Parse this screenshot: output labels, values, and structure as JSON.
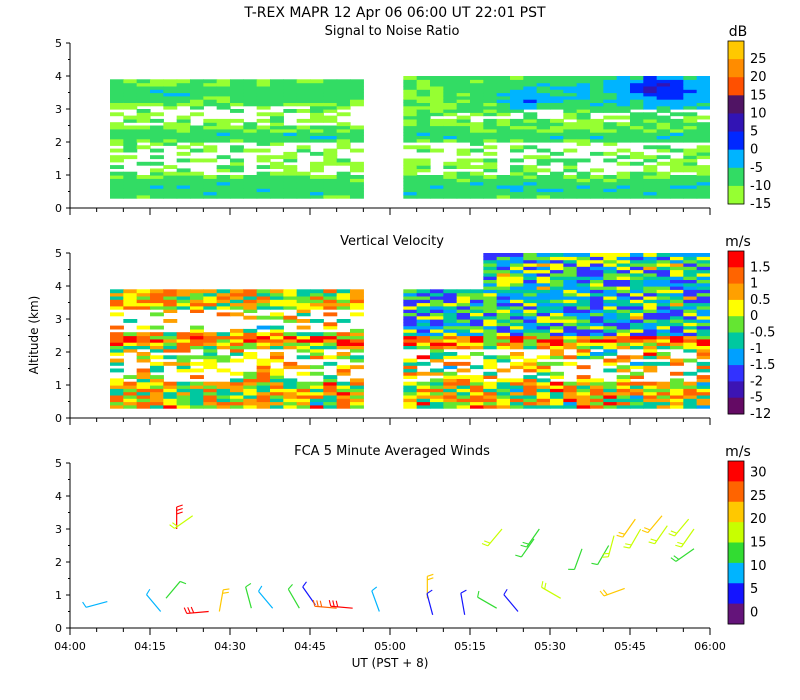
{
  "figure": {
    "title": "T-REX   MAPR 12 Apr 06   06:00 UT   22:01   PST",
    "xlabel": "UT  (PST + 8)",
    "ylabel": "Altitude (km)",
    "x_ticks": [
      "04:00",
      "04:15",
      "04:30",
      "04:45",
      "05:00",
      "05:15",
      "05:30",
      "05:45",
      "06:00"
    ],
    "y_ticks": [
      "0",
      "1",
      "2",
      "3",
      "4",
      "5"
    ]
  },
  "chart_data": [
    {
      "type": "heatmap",
      "title": "Signal to Noise Ratio",
      "units": "dB",
      "xlim": [
        "04:00",
        "06:00"
      ],
      "ylim": [
        0,
        5
      ],
      "colorbar_labels": [
        "25",
        "20",
        "15",
        "10",
        "5",
        "0",
        "-5",
        "-10",
        "-15"
      ],
      "colorbar_colors": [
        "#ffc800",
        "#ff8c00",
        "#ff5000",
        "#501464",
        "#3214b4",
        "#0028ff",
        "#00b4ff",
        "#32dc64",
        "#96ff32"
      ],
      "data_gap": [
        "04:55",
        "05:01"
      ],
      "data_alt_range": [
        0.3,
        4.0
      ],
      "features": [
        {
          "band": "near-surface",
          "alt_km": [
            0.3,
            1.0
          ],
          "level_db": -10
        },
        {
          "band": "layer",
          "alt_km": [
            2.0,
            2.4
          ],
          "level_db": -10
        },
        {
          "band": "layer",
          "alt_km": [
            3.2,
            4.0
          ],
          "level_db": -5
        },
        {
          "band": "upper max",
          "time": "05:50",
          "alt_km": 3.7,
          "level_db": 0
        }
      ]
    },
    {
      "type": "heatmap",
      "title": "Vertical Velocity",
      "units": "m/s",
      "xlim": [
        "04:00",
        "06:00"
      ],
      "ylim": [
        0,
        5
      ],
      "colorbar_labels": [
        "1.5",
        "1",
        "0.5",
        "0",
        "-0.5",
        "-1",
        "-1.5",
        "-2",
        "-5",
        "-12"
      ],
      "colorbar_colors": [
        "#ff0000",
        "#ff6400",
        "#ffa000",
        "#ffff00",
        "#64e632",
        "#00c8a0",
        "#00a0ff",
        "#3232ff",
        "#3c14b4",
        "#640a64"
      ],
      "data_gap": [
        "04:55",
        "05:01"
      ],
      "data_alt_range": [
        0.3,
        5.0
      ]
    },
    {
      "type": "scatter",
      "title": "FCA 5 Minute Averaged Winds",
      "units": "m/s",
      "xlim": [
        "04:00",
        "06:00"
      ],
      "ylim": [
        0,
        5
      ],
      "colorbar_labels": [
        "30",
        "25",
        "20",
        "15",
        "10",
        "5",
        "0"
      ],
      "colorbar_colors": [
        "#ff0000",
        "#ff6400",
        "#ffc800",
        "#c8ff00",
        "#32dc32",
        "#00b4ff",
        "#1414ff",
        "#64147a"
      ],
      "barbs": [
        {
          "time": "04:07",
          "alt_km": 0.8,
          "speed": 7,
          "dir": 255
        },
        {
          "time": "04:17",
          "alt_km": 0.5,
          "speed": 10,
          "dir": 320
        },
        {
          "time": "04:18",
          "alt_km": 0.9,
          "speed": 14,
          "dir": 40
        },
        {
          "time": "04:20",
          "alt_km": 3.0,
          "speed": 30,
          "dir": 0
        },
        {
          "time": "04:23",
          "alt_km": 3.4,
          "speed": 18,
          "dir": 235
        },
        {
          "time": "04:26",
          "alt_km": 0.5,
          "speed": 28,
          "dir": 265
        },
        {
          "time": "04:28",
          "alt_km": 0.5,
          "speed": 22,
          "dir": 10
        },
        {
          "time": "04:34",
          "alt_km": 0.6,
          "speed": 12,
          "dir": 345
        },
        {
          "time": "04:38",
          "alt_km": 0.6,
          "speed": 10,
          "dir": 320
        },
        {
          "time": "04:43",
          "alt_km": 0.6,
          "speed": 12,
          "dir": 330
        },
        {
          "time": "04:46",
          "alt_km": 0.7,
          "speed": 4,
          "dir": 325
        },
        {
          "time": "04:50",
          "alt_km": 0.6,
          "speed": 27,
          "dir": 275
        },
        {
          "time": "04:53",
          "alt_km": 0.6,
          "speed": 29,
          "dir": 275
        },
        {
          "time": "04:58",
          "alt_km": 0.5,
          "speed": 10,
          "dir": 340
        },
        {
          "time": "05:07",
          "alt_km": 0.9,
          "speed": 21,
          "dir": 0
        },
        {
          "time": "05:08",
          "alt_km": 0.4,
          "speed": 6,
          "dir": 345
        },
        {
          "time": "05:14",
          "alt_km": 0.4,
          "speed": 5,
          "dir": 350
        },
        {
          "time": "05:20",
          "alt_km": 0.6,
          "speed": 14,
          "dir": 300
        },
        {
          "time": "05:21",
          "alt_km": 3.0,
          "speed": 18,
          "dir": 220
        },
        {
          "time": "05:24",
          "alt_km": 0.5,
          "speed": 5,
          "dir": 320
        },
        {
          "time": "05:27",
          "alt_km": 2.7,
          "speed": 12,
          "dir": 215
        },
        {
          "time": "05:28",
          "alt_km": 3.0,
          "speed": 15,
          "dir": 215
        },
        {
          "time": "05:32",
          "alt_km": 0.9,
          "speed": 16,
          "dir": 300
        },
        {
          "time": "05:36",
          "alt_km": 2.4,
          "speed": 12,
          "dir": 200
        },
        {
          "time": "05:41",
          "alt_km": 2.5,
          "speed": 13,
          "dir": 210
        },
        {
          "time": "05:42",
          "alt_km": 2.8,
          "speed": 16,
          "dir": 195
        },
        {
          "time": "05:44",
          "alt_km": 1.2,
          "speed": 20,
          "dir": 250
        },
        {
          "time": "05:46",
          "alt_km": 3.3,
          "speed": 20,
          "dir": 215
        },
        {
          "time": "05:47",
          "alt_km": 3.0,
          "speed": 17,
          "dir": 210
        },
        {
          "time": "05:51",
          "alt_km": 3.4,
          "speed": 20,
          "dir": 220
        },
        {
          "time": "05:52",
          "alt_km": 3.1,
          "speed": 18,
          "dir": 215
        },
        {
          "time": "05:56",
          "alt_km": 3.3,
          "speed": 19,
          "dir": 220
        },
        {
          "time": "05:57",
          "alt_km": 3.0,
          "speed": 17,
          "dir": 215
        },
        {
          "time": "05:57",
          "alt_km": 2.4,
          "speed": 15,
          "dir": 235
        }
      ]
    }
  ]
}
